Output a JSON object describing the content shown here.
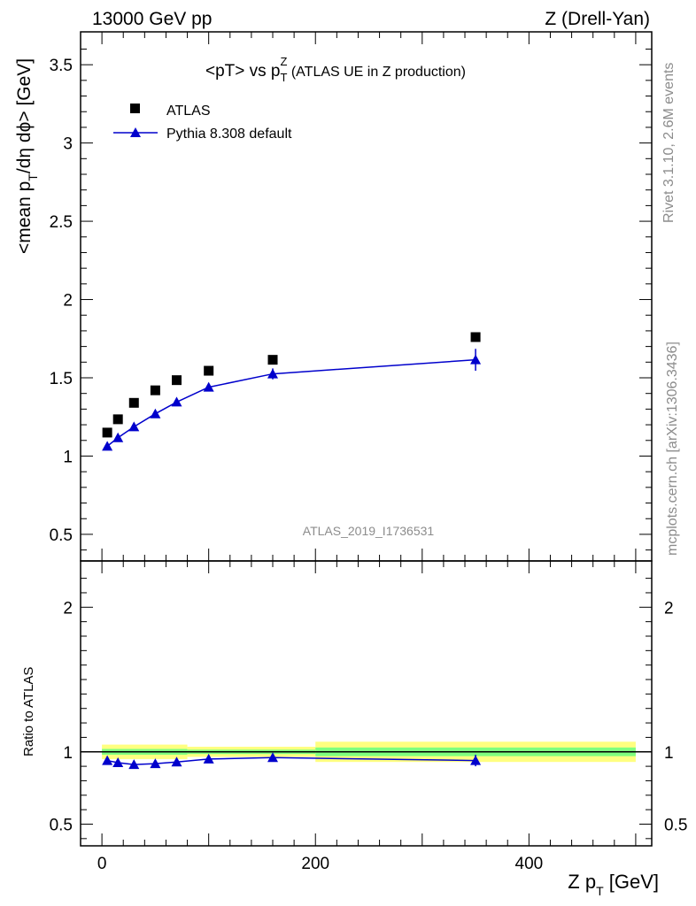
{
  "header": {
    "left": "13000 GeV pp",
    "right": "Z (Drell-Yan)"
  },
  "side_text": {
    "rivet": "Rivet 3.1.10,  2.6M events",
    "mcplots": "mcplots.cern.ch [arXiv:1306.3436]"
  },
  "colors": {
    "data": "#000000",
    "mc": "#0000cc",
    "band_inner": "#7fff7f",
    "band_outer": "#ffff80"
  },
  "chart_data": {
    "type": "scatter",
    "title_main": "<pT> vs p",
    "title_sub": "T",
    "title_sup": "Z",
    "title_tail": " (ATLAS UE in Z production)",
    "analysis_label": "ATLAS_2019_I1736531",
    "ylabel_main": "<mean p",
    "ylabel_sub": "T",
    "ylabel_tail": "/dη dϕ> [GeV]",
    "ratio_ylabel": "Ratio to ATLAS",
    "xlabel_main": "Z p",
    "xlabel_sub": "T",
    "xlabel_tail": " [GeV]",
    "xlim": [
      -20,
      515
    ],
    "ylim": [
      0.33,
      3.71
    ],
    "ratio_ylim": [
      0.35,
      2.32
    ],
    "x_ticks": [
      0,
      200,
      400
    ],
    "y_ticks": [
      0.5,
      1,
      1.5,
      2,
      2.5,
      3,
      3.5
    ],
    "ratio_ticks": [
      0.5,
      1,
      2
    ],
    "legend": [
      {
        "name": "ATLAS",
        "marker": "square"
      },
      {
        "name": "Pythia 8.308 default",
        "marker": "triangle"
      }
    ],
    "series": [
      {
        "name": "ATLAS",
        "x": [
          5,
          15,
          30,
          50,
          70,
          100,
          160,
          350
        ],
        "y": [
          1.15,
          1.235,
          1.34,
          1.42,
          1.485,
          1.545,
          1.615,
          1.76
        ]
      },
      {
        "name": "Pythia 8.308 default",
        "x": [
          5,
          15,
          30,
          50,
          70,
          100,
          160,
          350
        ],
        "y": [
          1.063,
          1.117,
          1.187,
          1.27,
          1.345,
          1.44,
          1.525,
          1.615
        ],
        "yerr": [
          0.008,
          0.008,
          0.01,
          0.012,
          0.014,
          0.02,
          0.035,
          0.07
        ]
      }
    ],
    "ratio": {
      "x": [
        5,
        15,
        30,
        50,
        70,
        100,
        160,
        350
      ],
      "y": [
        0.94,
        0.925,
        0.912,
        0.918,
        0.93,
        0.95,
        0.96,
        0.94
      ],
      "yerr": [
        0.008,
        0.008,
        0.008,
        0.01,
        0.01,
        0.014,
        0.02,
        0.04
      ]
    },
    "bands": [
      {
        "x0": 0,
        "x1": 80,
        "inner": 0.02,
        "outer": 0.05
      },
      {
        "x0": 80,
        "x1": 200,
        "inner": 0.015,
        "outer": 0.035
      },
      {
        "x0": 200,
        "x1": 500,
        "inner": 0.03,
        "outer": 0.07
      }
    ]
  }
}
